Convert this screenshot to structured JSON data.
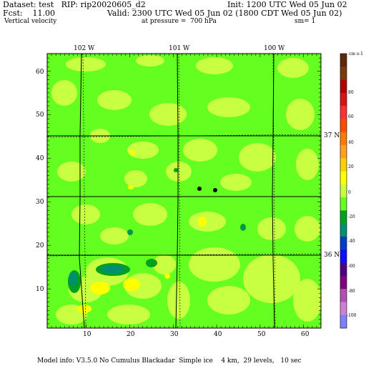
{
  "header": {
    "dataset": "Dataset: test   RIP: rip20020605_d2",
    "init": "Init: 1200 UTC Wed 05 Jun 02",
    "fcst": "Fcst:    11.00",
    "valid": "Valid: 2300 UTC Wed 05 Jun 02 (1800 CDT Wed 05 Jun 02)",
    "field": "Vertical velocity",
    "pressure": "at pressure =  700 hPa",
    "smoothing": "sm= 1"
  },
  "map": {
    "lon_labels": [
      "102 W",
      "101 W",
      "100 W"
    ],
    "lat_labels": [
      "37 N",
      "36 N"
    ],
    "x_ticks": [
      "10",
      "20",
      "30",
      "40",
      "50",
      "60"
    ],
    "y_ticks": [
      "10",
      "20",
      "30",
      "40",
      "50",
      "60"
    ],
    "x_range": [
      1,
      64
    ],
    "y_range": [
      1,
      64
    ]
  },
  "colorbar": {
    "unit_label": "cm s-1",
    "labels": [
      "80",
      "60",
      "40",
      "20",
      "0",
      "-20",
      "-40",
      "-60",
      "-80",
      "-100"
    ],
    "colors": [
      "#5a2a0a",
      "#7a3a0a",
      "#b00000",
      "#d81414",
      "#ff3030",
      "#ff4a00",
      "#ff7a00",
      "#ffa020",
      "#ffd000",
      "#ffff00",
      "#c8ff40",
      "#64ff20",
      "#00a020",
      "#009070",
      "#003ccc",
      "#1010ff",
      "#4a0080",
      "#800080",
      "#b050b0",
      "#d080d0",
      "#8080ff"
    ]
  },
  "footer": {
    "model_info": "Model info: V3.5.0 No Cumulus Blackadar  Simple ice    4 km,  29 levels,   10 sec"
  },
  "colors": {
    "background_field": "#64ff20",
    "light_field": "#c8ff40",
    "yellow": "#ffff00",
    "dark_green": "#00a020",
    "teal": "#009070"
  }
}
